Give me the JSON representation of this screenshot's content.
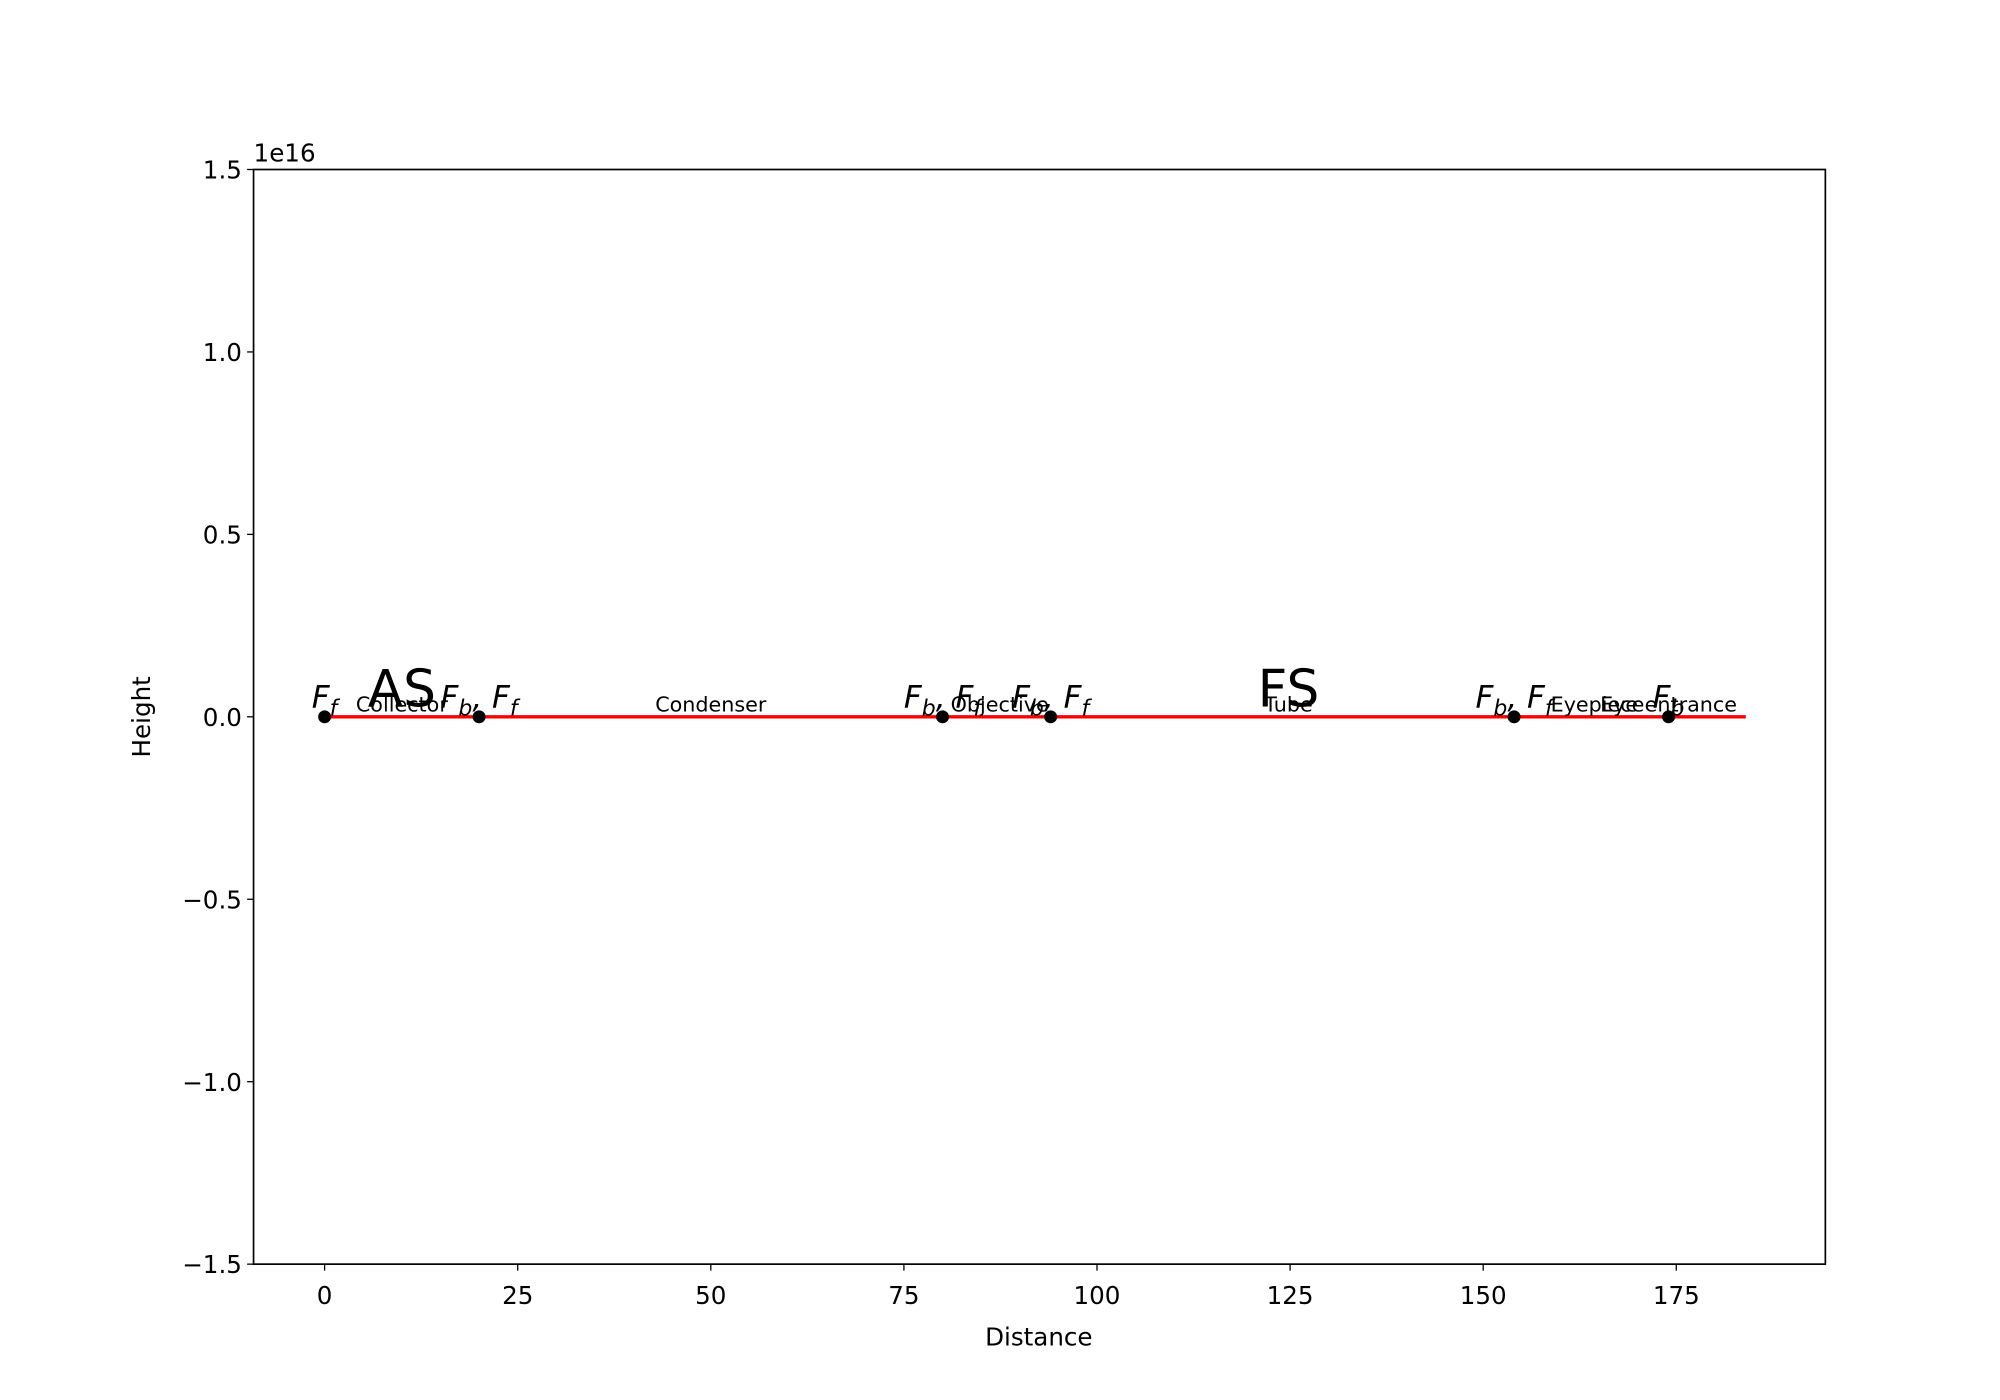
{
  "chart_data": {
    "type": "line",
    "xlabel": "Distance",
    "ylabel": "Height",
    "xlim": [
      -9.2,
      194.3
    ],
    "ylim": [
      -1.5e+16,
      1.5e+16
    ],
    "xticks": [
      0,
      25,
      50,
      75,
      100,
      125,
      150,
      175
    ],
    "yticks": [
      {
        "value": -1.5e+16,
        "label": "−1.5"
      },
      {
        "value": -1e+16,
        "label": "−1.0"
      },
      {
        "value": -5000000000000000.0,
        "label": "−0.5"
      },
      {
        "value": 0,
        "label": "0.0"
      },
      {
        "value": 5000000000000000.0,
        "label": "0.5"
      },
      {
        "value": 1e+16,
        "label": "1.0"
      },
      {
        "value": 1.5e+16,
        "label": "1.5"
      }
    ],
    "y_offset_label": "1e16",
    "series": [
      {
        "color": "#ff0000",
        "x": [
          0,
          184
        ],
        "values": [
          0,
          0
        ]
      }
    ],
    "focal_points": {
      "color": "#000000",
      "x": [
        0,
        20,
        80,
        94,
        154,
        174
      ],
      "values": [
        0,
        0,
        0,
        0,
        0,
        0
      ],
      "labels": [
        "F_f",
        "F_b, F_f",
        "F_b, F_f",
        "F_b, F_f",
        "F_b, F_f",
        "F_b"
      ]
    },
    "elements": {
      "x": [
        10,
        50,
        87.4,
        124.8,
        164.8,
        174
      ],
      "labels": [
        "Collector",
        "Condenser",
        "Objective",
        "Tube",
        "Eyepiece",
        "Eye entrance"
      ]
    },
    "stops": {
      "x": [
        10,
        124.8
      ],
      "labels": [
        "AS",
        "FS"
      ]
    }
  }
}
